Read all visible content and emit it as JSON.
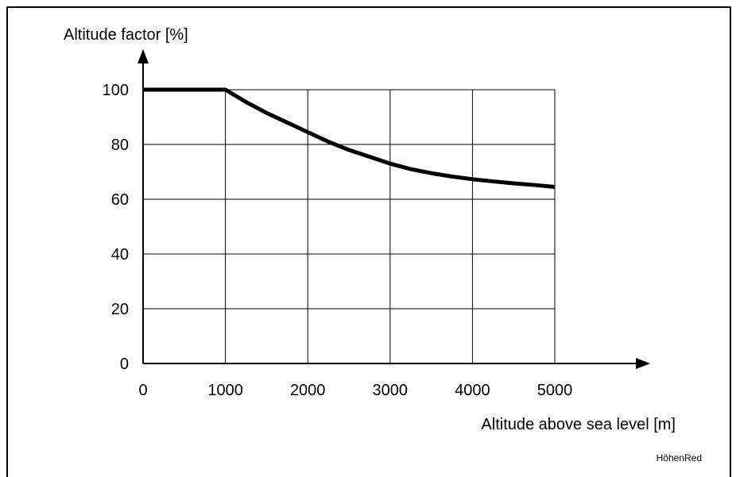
{
  "chart_data": {
    "type": "line",
    "ylabel": "Altitude factor [%]",
    "xlabel": "Altitude above sea level [m]",
    "xlim": [
      0,
      5000
    ],
    "ylim": [
      0,
      100
    ],
    "xticks": [
      "0",
      "1000",
      "2000",
      "3000",
      "4000",
      "5000"
    ],
    "yticks": [
      "0",
      "20",
      "40",
      "60",
      "80",
      "100"
    ],
    "grid": true,
    "series": [
      {
        "x": [
          0,
          1000,
          1250,
          1500,
          1750,
          2000,
          2250,
          2500,
          2750,
          3000,
          3250,
          3500,
          3750,
          4000,
          4250,
          4500,
          4750,
          5000
        ],
        "y": [
          100,
          100,
          95.5,
          91.5,
          88.0,
          84.5,
          81.0,
          78.0,
          75.5,
          73.0,
          71.0,
          69.5,
          68.3,
          67.3,
          66.5,
          65.8,
          65.2,
          64.5
        ]
      }
    ],
    "annotation": "HöhenRed"
  }
}
